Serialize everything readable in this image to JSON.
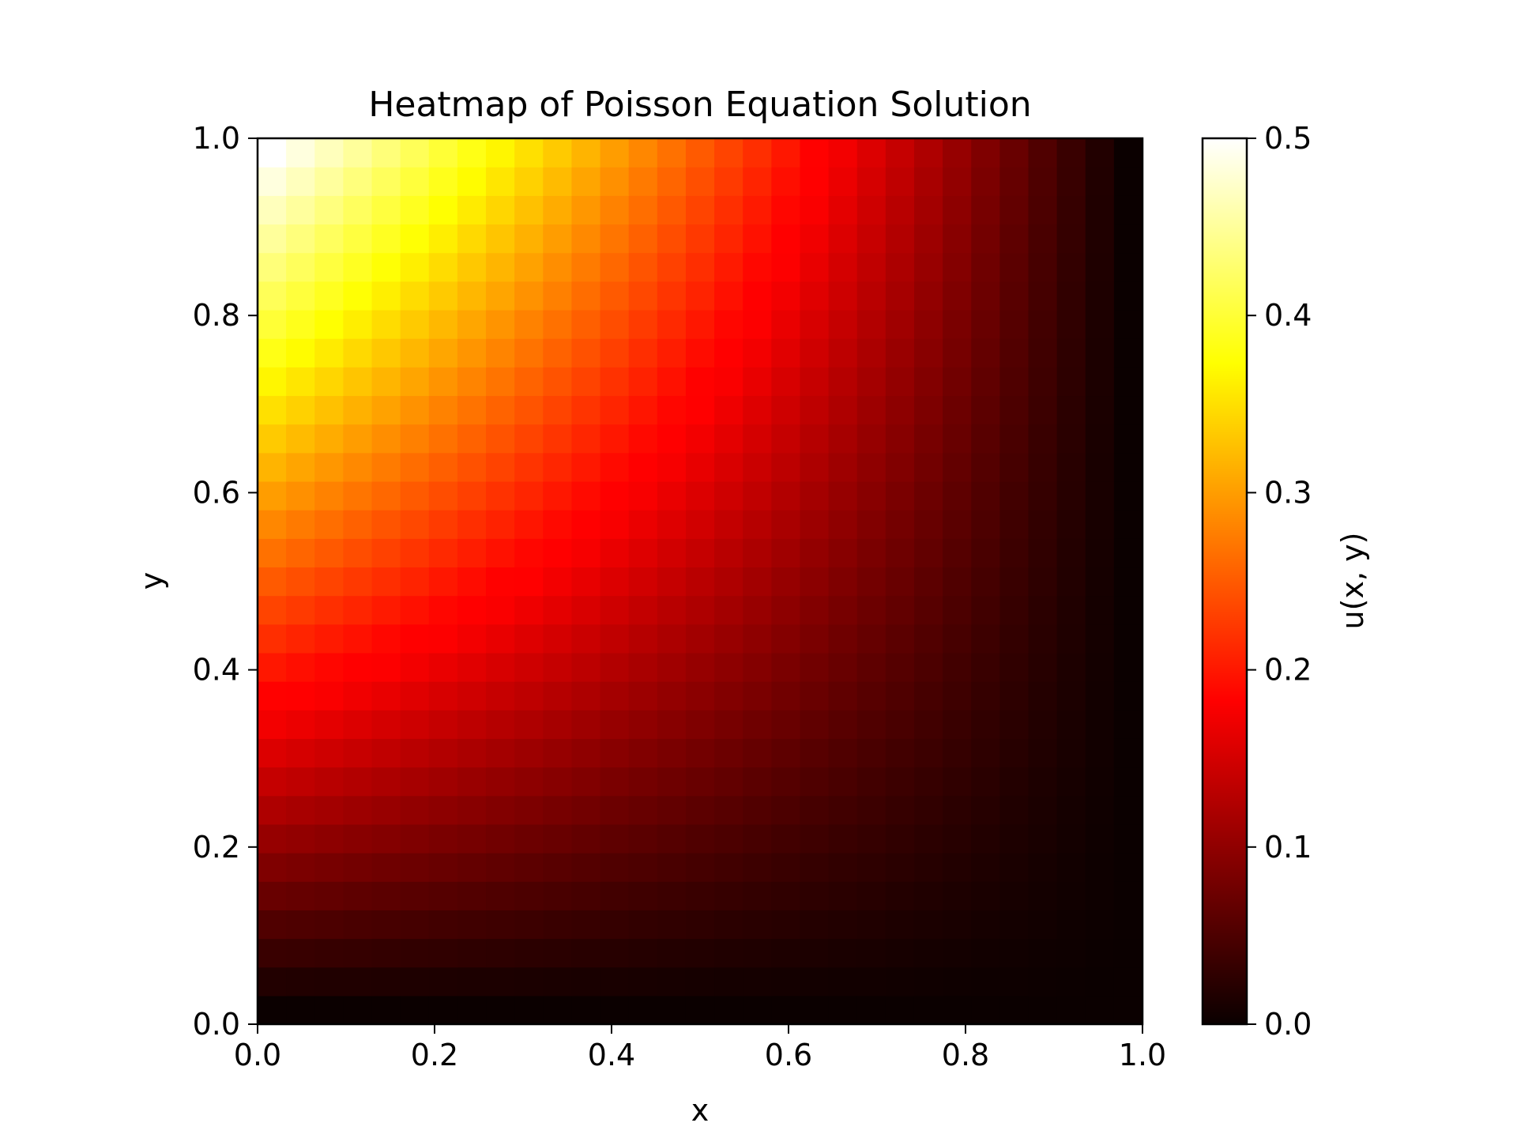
{
  "chart_data": {
    "type": "heatmap",
    "title": "Heatmap of Poisson Equation Solution",
    "xlabel": "x",
    "ylabel": "y",
    "xlim": [
      0.0,
      1.0
    ],
    "ylim": [
      0.0,
      1.0
    ],
    "grid": false,
    "colormap": "hot",
    "x_ticks": [
      "0.0",
      "0.2",
      "0.4",
      "0.6",
      "0.8",
      "1.0"
    ],
    "y_ticks": [
      "0.0",
      "0.2",
      "0.4",
      "0.6",
      "0.8",
      "1.0"
    ],
    "grid_size": [
      31,
      31
    ],
    "colorbar": {
      "label": "u(x, y)",
      "range": [
        0.0,
        0.5
      ],
      "ticks": [
        "0.0",
        "0.1",
        "0.2",
        "0.3",
        "0.4",
        "0.5"
      ]
    },
    "field": {
      "expression": "u(x, y) = y*(1 - x) / 2",
      "u_at_corners": {
        "x0_y0": 0.0,
        "x1_y0": 0.0,
        "x0_y1": 0.5,
        "x1_y1": 0.0
      },
      "max": 0.5
    }
  }
}
